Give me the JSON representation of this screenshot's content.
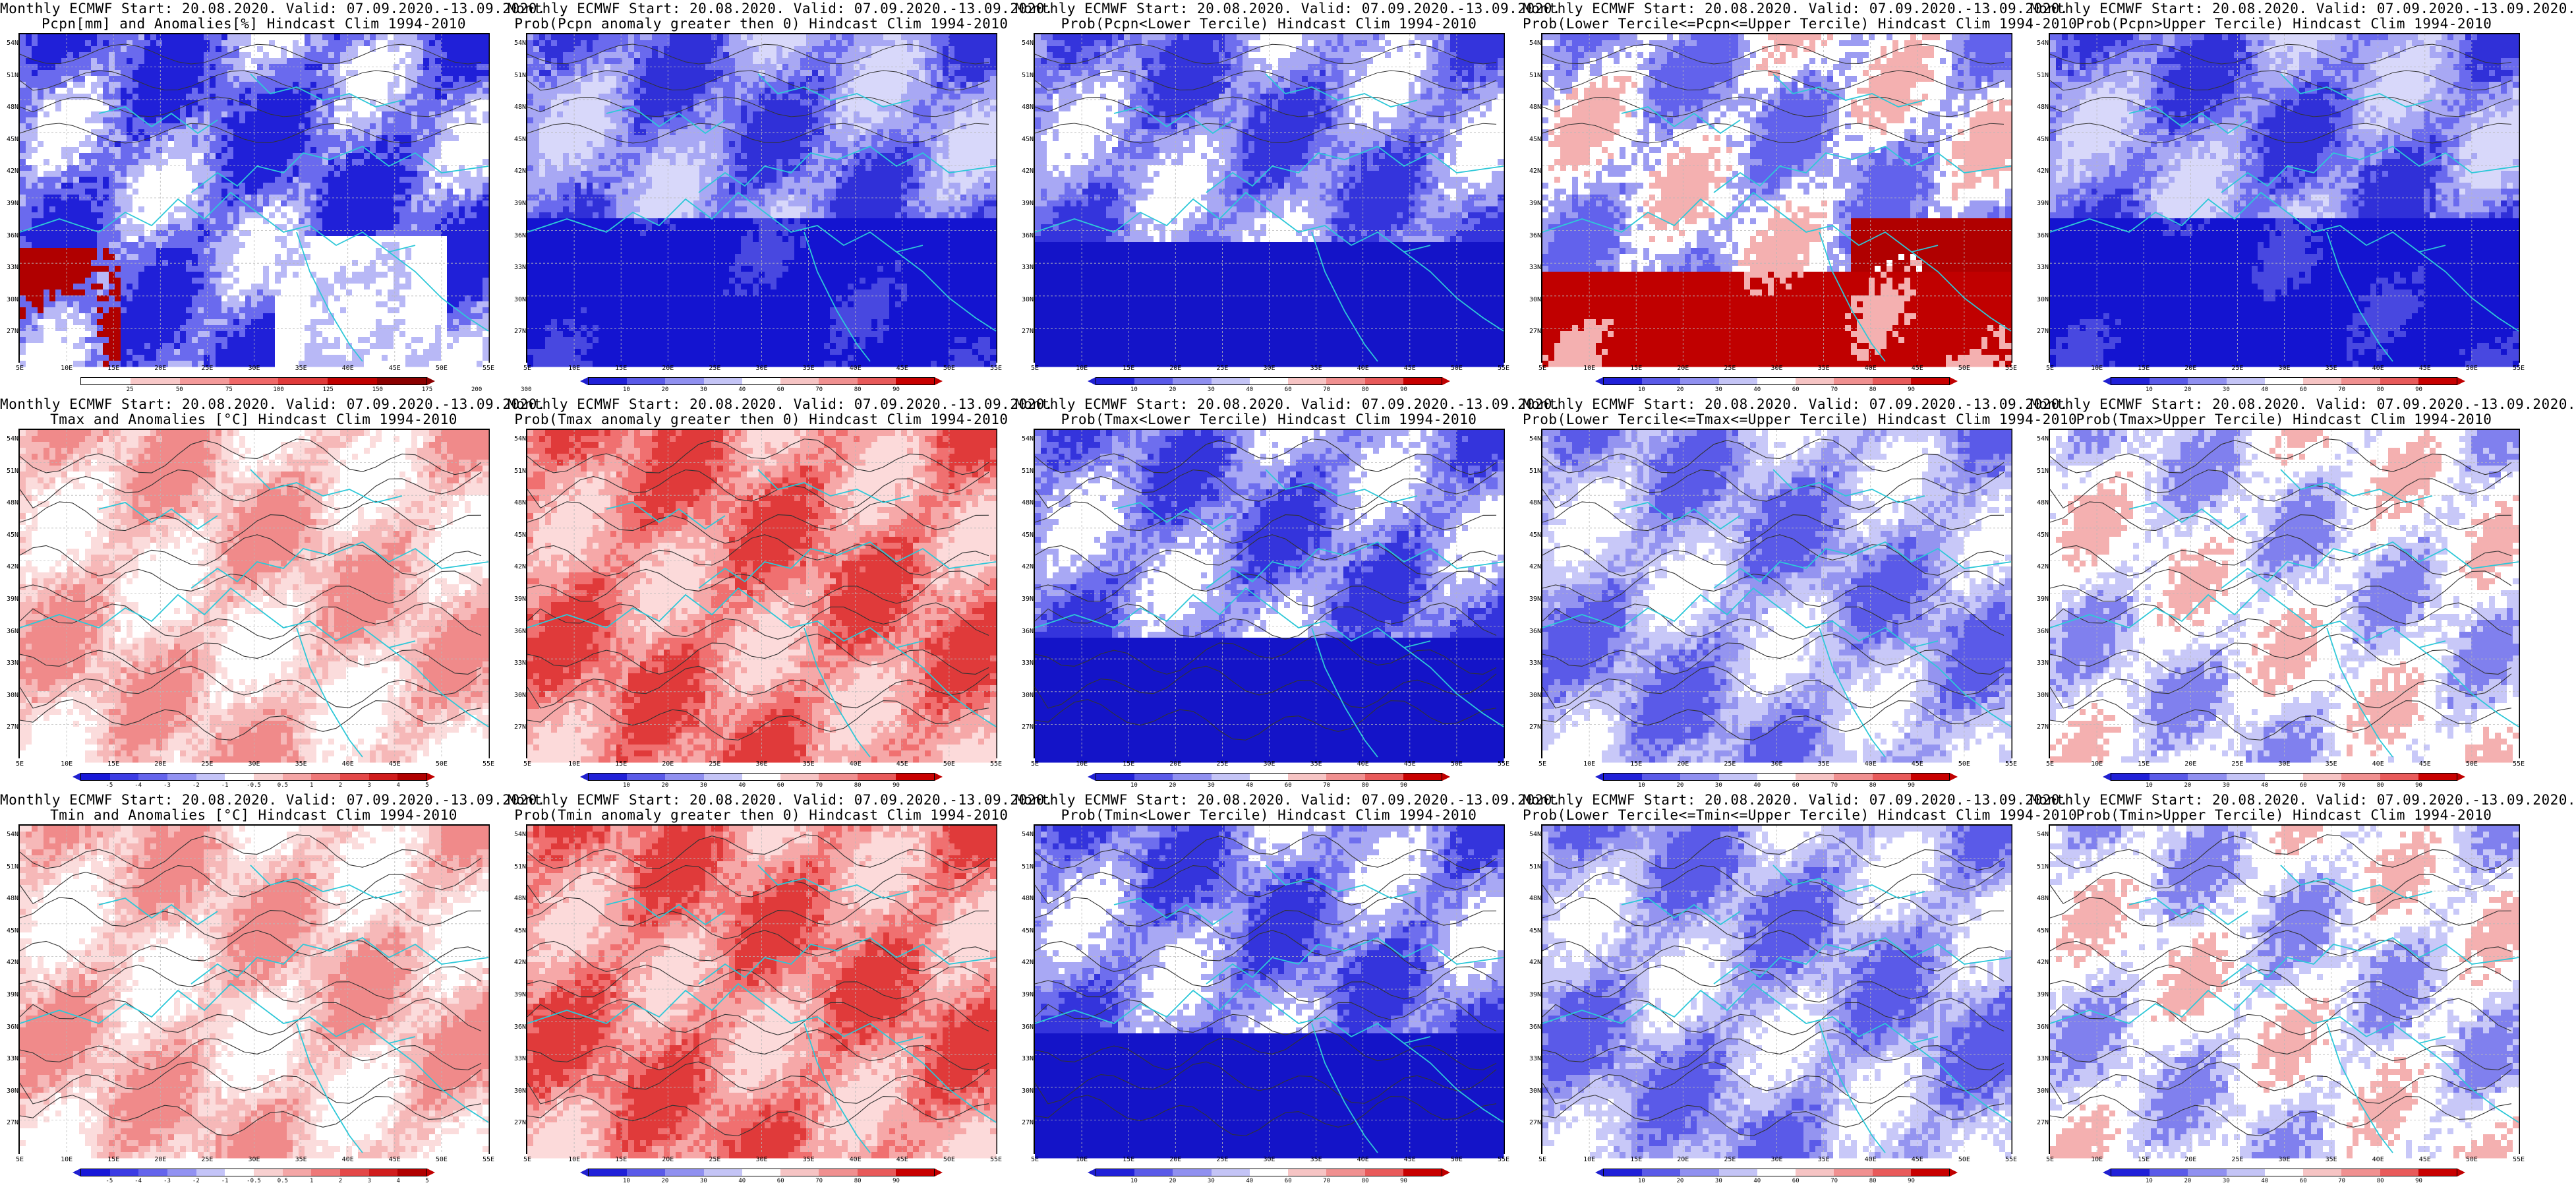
{
  "map_view": {
    "lat_labels": [
      "54N",
      "51N",
      "48N",
      "45N",
      "42N",
      "39N",
      "36N",
      "33N",
      "30N",
      "27N"
    ],
    "lon_labels": [
      "5E",
      "10E",
      "15E",
      "20E",
      "25E",
      "30E",
      "35E",
      "40E",
      "45E",
      "50E",
      "55E"
    ],
    "colors": {
      "coastline": "#2ec8d8",
      "contour": "#333333",
      "grid": "#b8b8b8"
    }
  },
  "panels": [
    {
      "title1": "Monthly ECMWF Start: 20.08.2020. Valid: 07.09.2020.-13.09.2020.",
      "title2": "Pcpn[mm] and Anomalies[%] Hindcast Clim 1994-2010",
      "kind": "pcpn_anom",
      "colorbar": {
        "ticks": [
          "25",
          "50",
          "75",
          "100",
          "125",
          "150",
          "175",
          "200",
          "300"
        ]
      }
    },
    {
      "title1": "Monthly ECMWF Start: 20.08.2020. Valid: 07.09.2020.-13.09.2020.",
      "title2": "Prob(Pcpn anomaly greater then 0) Hindcast Clim 1994-2010",
      "kind": "prob_low",
      "colorbar": {
        "ticks": [
          "10",
          "20",
          "30",
          "40",
          "60",
          "70",
          "80",
          "90"
        ]
      }
    },
    {
      "title1": "Monthly ECMWF Start: 20.08.2020. Valid: 07.09.2020.-13.09.2020.",
      "title2": "Prob(Pcpn<Lower Tercile) Hindcast Clim 1994-2010",
      "kind": "prob_low2",
      "colorbar": {
        "ticks": [
          "10",
          "20",
          "30",
          "40",
          "60",
          "70",
          "80",
          "90"
        ]
      }
    },
    {
      "title1": "Monthly ECMWF Start: 20.08.2020. Valid: 07.09.2020.-13.09.2020.",
      "title2": "Prob(Lower Tercile<=Pcpn<=Upper Tercile) Hindcast Clim 1994-2010",
      "kind": "prob_mid_red",
      "colorbar": {
        "ticks": [
          "10",
          "20",
          "30",
          "40",
          "60",
          "70",
          "80",
          "90"
        ]
      }
    },
    {
      "title1": "Monthly ECMWF Start: 20.08.2020. Valid: 07.09.2020.-13.09.2020.",
      "title2": "Prob(Pcpn>Upper Tercile) Hindcast Clim 1994-2010",
      "kind": "prob_low",
      "colorbar": {
        "ticks": [
          "10",
          "20",
          "30",
          "40",
          "60",
          "70",
          "80",
          "90"
        ]
      }
    },
    {
      "title1": "Monthly ECMWF Start: 20.08.2020. Valid: 07.09.2020.-13.09.2020.",
      "title2": "Tmax and Anomalies [°C] Hindcast Clim 1994-2010",
      "kind": "temp_anom",
      "colorbar": {
        "ticks": [
          "-5",
          "-4",
          "-3",
          "-2",
          "-1",
          "-0.5",
          "0.5",
          "1",
          "2",
          "3",
          "4",
          "5"
        ]
      }
    },
    {
      "title1": "Monthly ECMWF Start: 20.08.2020. Valid: 07.09.2020.-13.09.2020.",
      "title2": "Prob(Tmax anomaly greater then 0) Hindcast Clim 1994-2010",
      "kind": "prob_high",
      "colorbar": {
        "ticks": [
          "10",
          "20",
          "30",
          "40",
          "60",
          "70",
          "80",
          "90"
        ]
      }
    },
    {
      "title1": "Monthly ECMWF Start: 20.08.2020. Valid: 07.09.2020.-13.09.2020.",
      "title2": "Prob(Tmax<Lower Tercile) Hindcast Clim 1994-2010",
      "kind": "prob_low2",
      "colorbar": {
        "ticks": [
          "10",
          "20",
          "30",
          "40",
          "60",
          "70",
          "80",
          "90"
        ]
      }
    },
    {
      "title1": "Monthly ECMWF Start: 20.08.2020. Valid: 07.09.2020.-13.09.2020.",
      "title2": "Prob(Lower Tercile<=Tmax<=Upper Tercile) Hindcast Clim 1994-2010",
      "kind": "prob_mid",
      "colorbar": {
        "ticks": [
          "10",
          "20",
          "30",
          "40",
          "60",
          "70",
          "80",
          "90"
        ]
      }
    },
    {
      "title1": "Monthly ECMWF Start: 20.08.2020. Valid: 07.09.2020.-13.09.2020.",
      "title2": "Prob(Tmax>Upper Tercile) Hindcast Clim 1994-2010",
      "kind": "prob_mixed",
      "colorbar": {
        "ticks": [
          "10",
          "20",
          "30",
          "40",
          "60",
          "70",
          "80",
          "90"
        ]
      }
    },
    {
      "title1": "Monthly ECMWF Start: 20.08.2020. Valid: 07.09.2020.-13.09.2020.",
      "title2": "Tmin and Anomalies [°C] Hindcast Clim 1994-2010",
      "kind": "temp_anom",
      "colorbar": {
        "ticks": [
          "-5",
          "-4",
          "-3",
          "-2",
          "-1",
          "-0.5",
          "0.5",
          "1",
          "2",
          "3",
          "4",
          "5"
        ]
      }
    },
    {
      "title1": "Monthly ECMWF Start: 20.08.2020. Valid: 07.09.2020.-13.09.2020.",
      "title2": "Prob(Tmin anomaly greater then 0) Hindcast Clim 1994-2010",
      "kind": "prob_high",
      "colorbar": {
        "ticks": [
          "10",
          "20",
          "30",
          "40",
          "60",
          "70",
          "80",
          "90"
        ]
      }
    },
    {
      "title1": "Monthly ECMWF Start: 20.08.2020. Valid: 07.09.2020.-13.09.2020.",
      "title2": "Prob(Tmin<Lower Tercile) Hindcast Clim 1994-2010",
      "kind": "prob_low2",
      "colorbar": {
        "ticks": [
          "10",
          "20",
          "30",
          "40",
          "60",
          "70",
          "80",
          "90"
        ]
      }
    },
    {
      "title1": "Monthly ECMWF Start: 20.08.2020. Valid: 07.09.2020.-13.09.2020.",
      "title2": "Prob(Lower Tercile<=Tmin<=Upper Tercile) Hindcast Clim 1994-2010",
      "kind": "prob_mid",
      "colorbar": {
        "ticks": [
          "10",
          "20",
          "30",
          "40",
          "60",
          "70",
          "80",
          "90"
        ]
      }
    },
    {
      "title1": "Monthly ECMWF Start: 20.08.2020. Valid: 07.09.2020.-13.09.2020.",
      "title2": "Prob(Tmin>Upper Tercile) Hindcast Clim 1994-2010",
      "kind": "prob_mixed",
      "colorbar": {
        "ticks": [
          "10",
          "20",
          "30",
          "40",
          "60",
          "70",
          "80",
          "90"
        ]
      }
    }
  ]
}
